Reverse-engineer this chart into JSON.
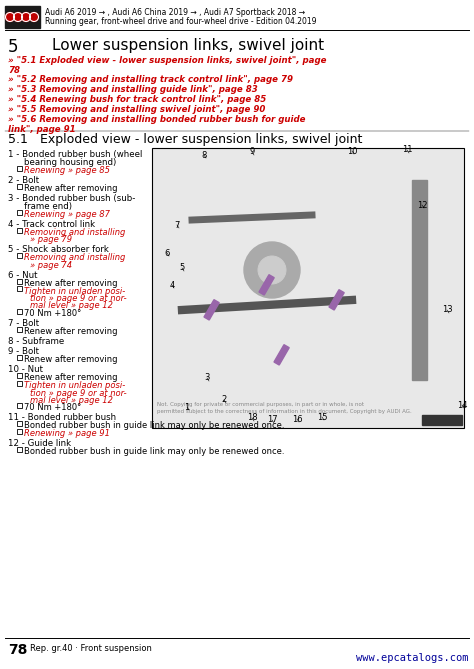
{
  "bg_color": "#ffffff",
  "header_box_color": "#1a1a1a",
  "header_text_line1": "Audi A6 2019 → , Audi A6 China 2019 → , Audi A7 Sportback 2018 →",
  "header_text_line2": "Running gear, front-wheel drive and four-wheel drive - Edition 04.2019",
  "section_number": "5",
  "section_title": "Lower suspension links, swivel joint",
  "links": [
    [
      "» \"5.1 Exploded view - lower suspension links, swivel joint\", page\n78",
      true
    ],
    [
      "» \"5.2 Removing and installing track control link\", page 79",
      true
    ],
    [
      "» \"5.3 Removing and installing guide link\", page 83",
      true
    ],
    [
      "» \"5.4 Renewing bush for track control link\", page 85",
      true
    ],
    [
      "» \"5.5 Removing and installing swivel joint\", page 90",
      true
    ],
    [
      "» \"5.6 Removing and installing bonded rubber bush for guide\nlink\", page 91",
      true
    ]
  ],
  "subsection_number": "5.1",
  "subsection_title": "Exploded view - lower suspension links, swivel joint",
  "left_items": [
    {
      "num": "1",
      "text": "Bonded rubber bush (wheel\nbearing housing end)",
      "sub": [
        {
          "t": "Renewing » page 85",
          "link": true
        }
      ]
    },
    {
      "num": "2",
      "text": "Bolt",
      "sub": [
        {
          "t": "Renew after removing",
          "link": false
        }
      ]
    },
    {
      "num": "3",
      "text": "Bonded rubber bush (sub-\nframe end)",
      "sub": [
        {
          "t": "Renewing » page 87",
          "link": true
        }
      ]
    },
    {
      "num": "4",
      "text": "Track control link",
      "sub": [
        {
          "t": "Removing and installing\n» page 79",
          "link": true
        }
      ]
    },
    {
      "num": "5",
      "text": "Shock absorber fork",
      "sub": [
        {
          "t": "Removing and installing\n» page 74",
          "link": true
        }
      ]
    },
    {
      "num": "6",
      "text": "Nut",
      "sub": [
        {
          "t": "Renew after removing",
          "link": false
        },
        {
          "t": "Tighten in unladen posi-\ntion » page 9 or at nor-\nmal level » page 12",
          "link": true
        },
        {
          "t": "70 Nm +180°",
          "link": false
        }
      ]
    },
    {
      "num": "7",
      "text": "Bolt",
      "sub": [
        {
          "t": "Renew after removing",
          "link": false
        }
      ]
    },
    {
      "num": "8",
      "text": "Subframe",
      "sub": []
    },
    {
      "num": "9",
      "text": "Bolt",
      "sub": [
        {
          "t": "Renew after removing",
          "link": false
        }
      ]
    },
    {
      "num": "10",
      "text": "Nut",
      "sub": [
        {
          "t": "Renew after removing",
          "link": false
        },
        {
          "t": "Tighten in unladen posi-\ntion » page 9 or at nor-\nmal level » page 12",
          "link": true
        },
        {
          "t": "70 Nm +180°",
          "link": false
        }
      ]
    },
    {
      "num": "11",
      "text": "Bonded rubber bush",
      "sub": [
        {
          "t": "Bonded rubber bush in guide link may only be renewed once.",
          "link": false
        },
        {
          "t": "Renewing » page 91",
          "link": true
        }
      ]
    },
    {
      "num": "12",
      "text": "Guide link",
      "sub": [
        {
          "t": "Bonded rubber bush in guide link may only be renewed once.",
          "link": false
        }
      ]
    }
  ],
  "footer_page": "78",
  "footer_text": "Rep. gr.40 · Front suspension",
  "footer_url": "www.epcatalogs.com",
  "link_color": "#cc0000",
  "text_color": "#000000"
}
